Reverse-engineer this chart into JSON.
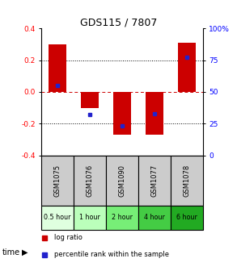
{
  "title": "GDS115 / 7807",
  "samples": [
    "GSM1075",
    "GSM1076",
    "GSM1090",
    "GSM1077",
    "GSM1078"
  ],
  "time_labels": [
    "0.5 hour",
    "1 hour",
    "2 hour",
    "4 hour",
    "6 hour"
  ],
  "time_colors": [
    "#dfffdf",
    "#bbffbb",
    "#77ee77",
    "#44cc44",
    "#22aa22"
  ],
  "log_ratios": [
    0.3,
    -0.1,
    -0.27,
    -0.27,
    0.31
  ],
  "percentile_ranks": [
    55,
    32,
    23,
    33,
    77
  ],
  "ylim": [
    -0.4,
    0.4
  ],
  "y2lim": [
    0,
    100
  ],
  "yticks_left": [
    -0.4,
    -0.2,
    0.0,
    0.2,
    0.4
  ],
  "yticks_right": [
    0,
    25,
    50,
    75,
    100
  ],
  "bar_color": "#cc0000",
  "dot_color": "#2222cc",
  "background_color": "#ffffff",
  "zero_line_color": "#cc0000",
  "dotted_line_color": "#000000",
  "legend_labels": [
    "log ratio",
    "percentile rank within the sample"
  ]
}
